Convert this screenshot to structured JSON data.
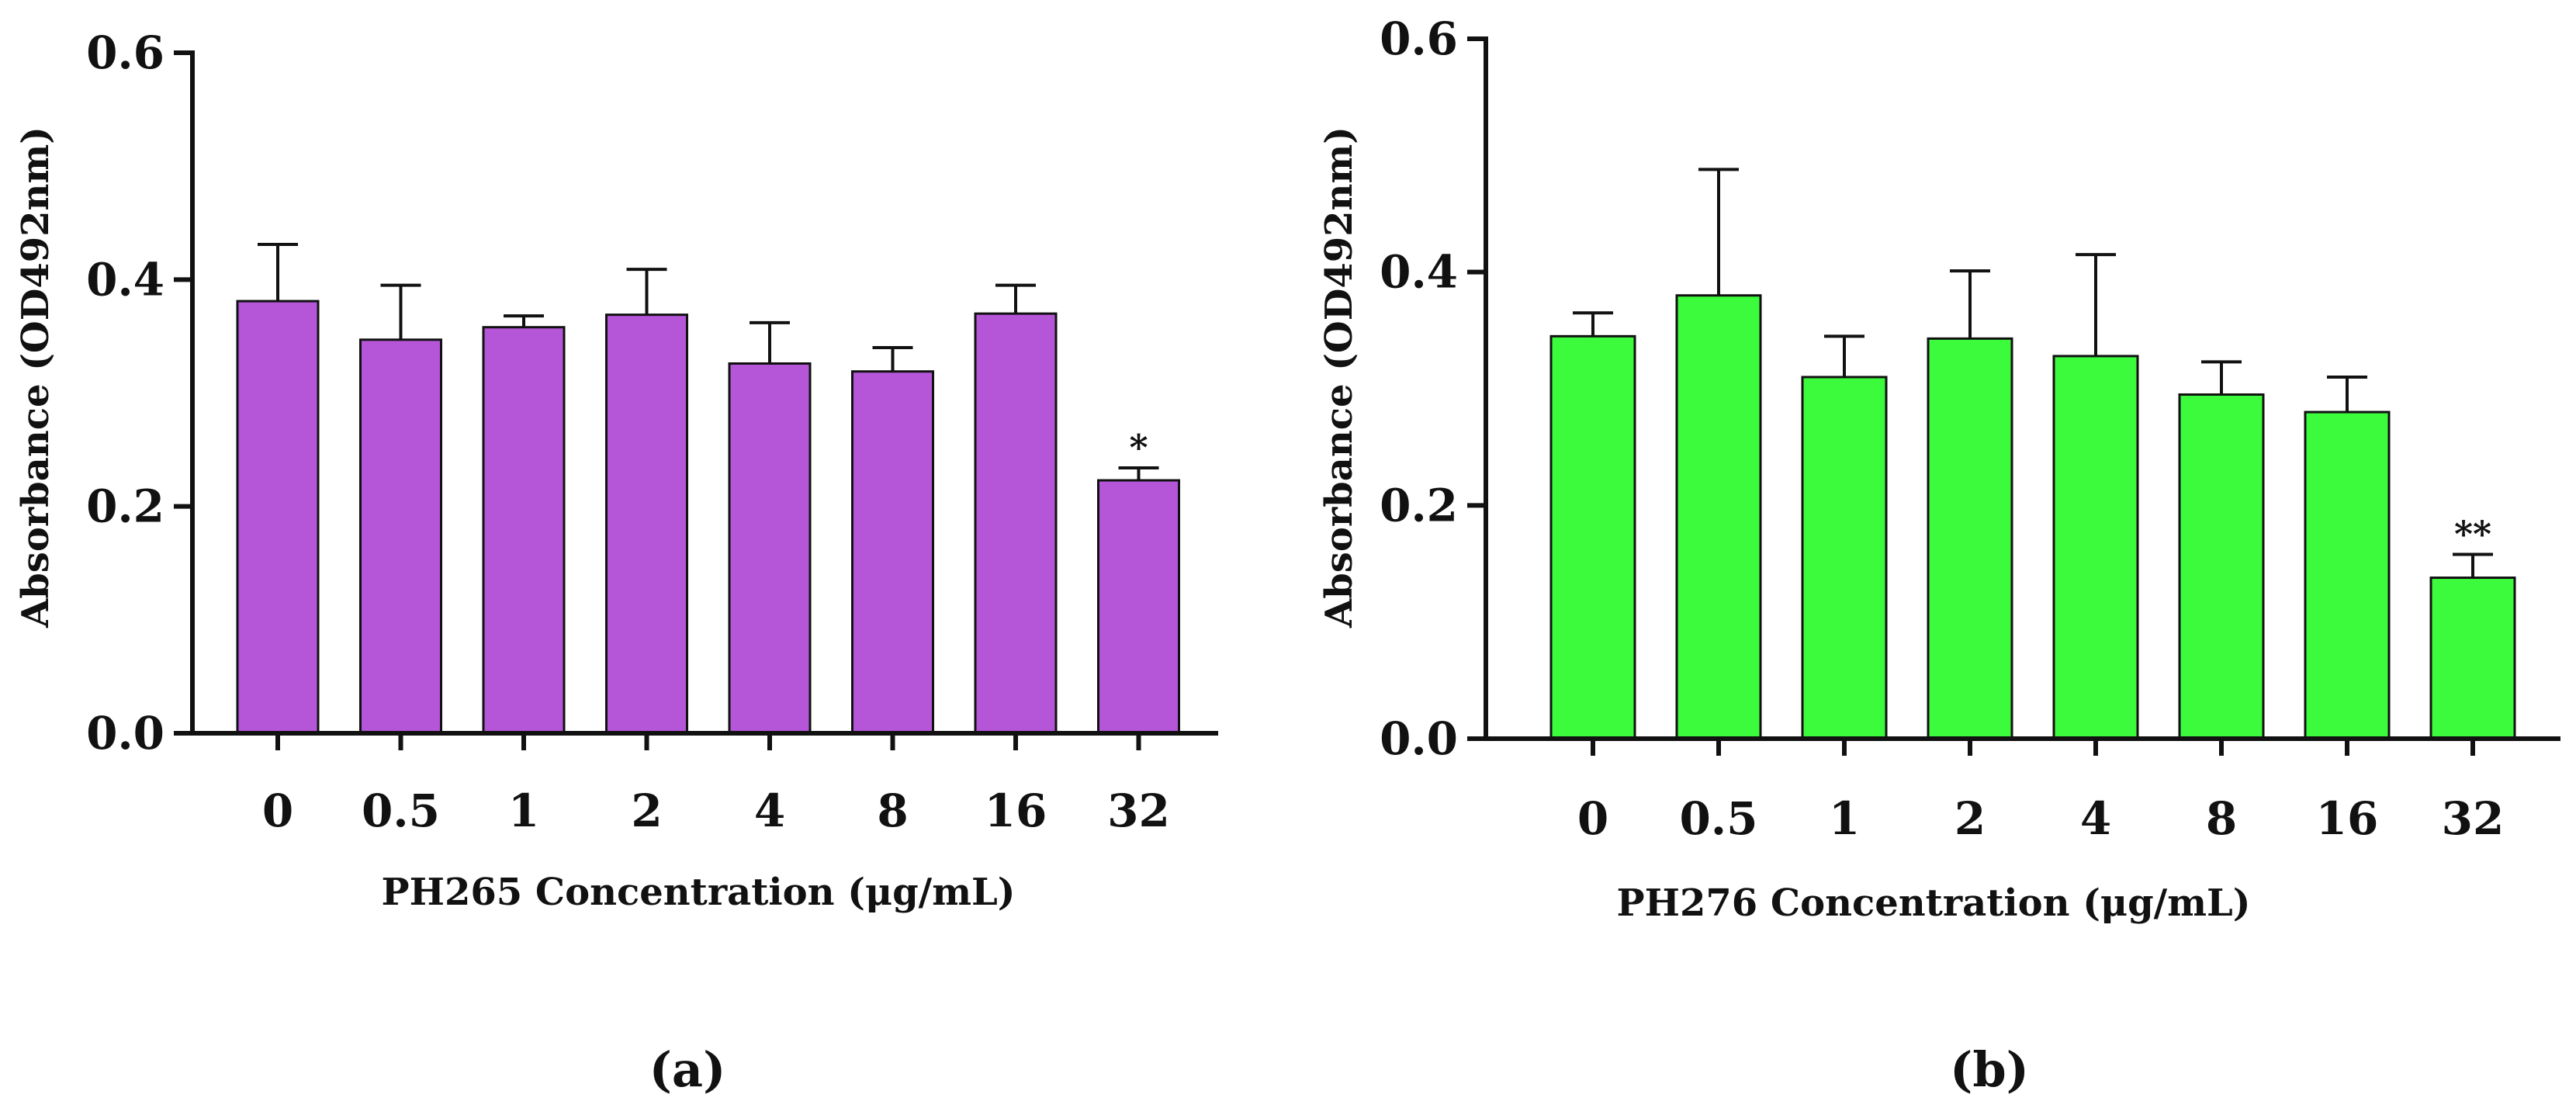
{
  "chart_data": [
    {
      "type": "bar",
      "panel": "(a)",
      "categories": [
        "0",
        "0.5",
        "1",
        "2",
        "4",
        "8",
        "16",
        "32"
      ],
      "values": [
        0.381,
        0.347,
        0.358,
        0.369,
        0.326,
        0.319,
        0.37,
        0.223
      ],
      "errors": [
        0.05,
        0.048,
        0.01,
        0.04,
        0.036,
        0.021,
        0.025,
        0.011
      ],
      "significance": [
        "",
        "",
        "",
        "",
        "",
        "",
        "",
        "*"
      ],
      "color": "#b556d9",
      "xlabel": "PH265 Concentration (μg/mL)",
      "ylabel": "Absorbance (OD492nm)",
      "ylim": [
        0,
        0.6
      ],
      "yticks": [
        0.0,
        0.2,
        0.4,
        0.6
      ],
      "ytick_labels": [
        "0.0",
        "0.2",
        "0.4",
        "0.6"
      ]
    },
    {
      "type": "bar",
      "panel": "(b)",
      "categories": [
        "0",
        "0.5",
        "1",
        "2",
        "4",
        "8",
        "16",
        "32"
      ],
      "values": [
        0.345,
        0.38,
        0.31,
        0.343,
        0.328,
        0.295,
        0.28,
        0.138
      ],
      "errors": [
        0.02,
        0.108,
        0.035,
        0.058,
        0.087,
        0.028,
        0.03,
        0.02
      ],
      "significance": [
        "",
        "",
        "",
        "",
        "",
        "",
        "",
        "**"
      ],
      "color": "#3cfa3c",
      "xlabel": "PH276 Concentration (μg/mL)",
      "ylabel": "Absorbance (OD492nm)",
      "ylim": [
        0,
        0.6
      ],
      "yticks": [
        0.0,
        0.2,
        0.4,
        0.6
      ],
      "ytick_labels": [
        "0.0",
        "0.2",
        "0.4",
        "0.6"
      ]
    }
  ]
}
